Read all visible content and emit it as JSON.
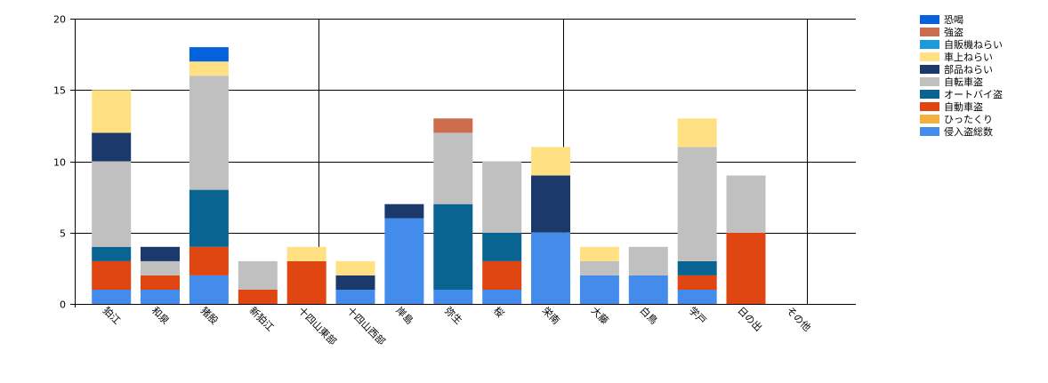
{
  "chart_data": {
    "type": "bar",
    "stacked": true,
    "title": "",
    "xlabel": "",
    "ylabel": "",
    "ylim": [
      0,
      20
    ],
    "yticks": [
      0,
      5,
      10,
      15,
      20
    ],
    "grid": "vertical lines every 5 categories + horizontal lines at each y tick",
    "legend_position": "top-right",
    "categories": [
      "狛江",
      "和泉",
      "猪股",
      "新狛江",
      "十四山東部",
      "十四山西部",
      "岸島",
      "弥生",
      "桜",
      "栄南",
      "大藤",
      "白鳥",
      "学戸",
      "日の出",
      "その他"
    ],
    "series": [
      {
        "name": "侵入盗総数",
        "color": "#448CEC",
        "values": [
          1,
          1,
          2,
          0,
          0,
          1,
          6,
          1,
          1,
          5,
          2,
          2,
          1,
          0,
          0
        ]
      },
      {
        "name": "ひったくり",
        "color": "#F2B03C",
        "values": [
          0,
          0,
          0,
          0,
          0,
          0,
          0,
          0,
          0,
          0,
          0,
          0,
          0,
          0,
          0
        ]
      },
      {
        "name": "自動車盗",
        "color": "#E04611",
        "values": [
          2,
          1,
          2,
          1,
          3,
          0,
          0,
          0,
          2,
          0,
          0,
          0,
          1,
          5,
          0
        ]
      },
      {
        "name": "オートバイ盗",
        "color": "#0A6492",
        "values": [
          1,
          0,
          4,
          0,
          0,
          0,
          0,
          6,
          2,
          0,
          0,
          0,
          1,
          0,
          0
        ]
      },
      {
        "name": "自転車盗",
        "color": "#C0C0C0",
        "values": [
          6,
          1,
          8,
          2,
          0,
          0,
          0,
          5,
          5,
          0,
          1,
          2,
          8,
          4,
          0
        ]
      },
      {
        "name": "部品ねらい",
        "color": "#1B3A6B",
        "values": [
          2,
          1,
          0,
          0,
          0,
          1,
          1,
          0,
          0,
          4,
          0,
          0,
          0,
          0,
          0
        ]
      },
      {
        "name": "車上ねらい",
        "color": "#FFE183",
        "values": [
          3,
          0,
          1,
          0,
          1,
          1,
          0,
          0,
          0,
          2,
          1,
          0,
          2,
          0,
          0
        ]
      },
      {
        "name": "自販機ねらい",
        "color": "#1A9ADB",
        "values": [
          0,
          0,
          0,
          0,
          0,
          0,
          0,
          0,
          0,
          0,
          0,
          0,
          0,
          0,
          0
        ]
      },
      {
        "name": "強盗",
        "color": "#CD6D4E",
        "values": [
          0,
          0,
          0,
          0,
          0,
          0,
          0,
          1,
          0,
          0,
          0,
          0,
          0,
          0,
          0
        ]
      },
      {
        "name": "恐喝",
        "color": "#0562DC",
        "values": [
          0,
          0,
          1,
          0,
          0,
          0,
          0,
          0,
          0,
          0,
          0,
          0,
          0,
          0,
          0
        ]
      }
    ],
    "legend_order": [
      "恐喝",
      "強盗",
      "自販機ねらい",
      "車上ねらい",
      "部品ねらい",
      "自転車盗",
      "オートバイ盗",
      "自動車盗",
      "ひったくり",
      "侵入盗総数"
    ]
  }
}
